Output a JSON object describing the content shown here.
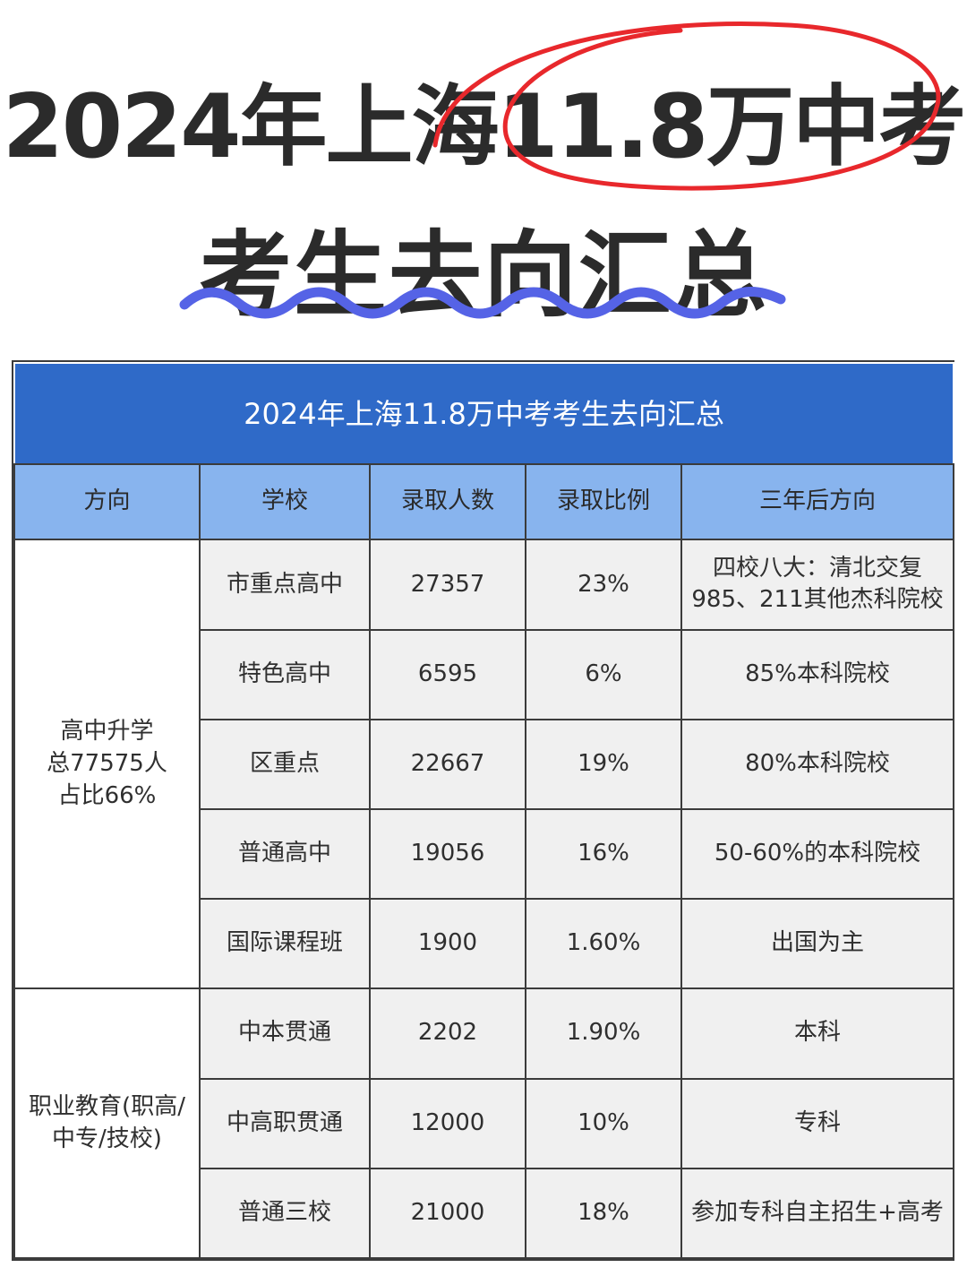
{
  "headline": {
    "line1": "2024年上海11.8万中考",
    "line2": "考生去向汇总",
    "circle_color": "#e8282c",
    "underline_color": "#5563e6"
  },
  "table": {
    "caption": "2024年上海11.8万中考考生去向汇总",
    "columns": [
      "方向",
      "学校",
      "录取人数",
      "录取比例",
      "三年后方向"
    ],
    "groups": [
      {
        "direction": "高中升学\n总77575人\n占比66%",
        "rows": [
          {
            "school": "市重点高中",
            "admitted": "27357",
            "ratio": "23%",
            "destination": "四校八大：清北交复\n985、211其他杰科院校"
          },
          {
            "school": "特色高中",
            "admitted": "6595",
            "ratio": "6%",
            "destination": "85%本科院校"
          },
          {
            "school": "区重点",
            "admitted": "22667",
            "ratio": "19%",
            "destination": "80%本科院校"
          },
          {
            "school": "普通高中",
            "admitted": "19056",
            "ratio": "16%",
            "destination": "50-60%的本科院校"
          },
          {
            "school": "国际课程班",
            "admitted": "1900",
            "ratio": "1.60%",
            "destination": "出国为主"
          }
        ]
      },
      {
        "direction": "职业教育(职高/\n中专/技校)",
        "rows": [
          {
            "school": "中本贯通",
            "admitted": "2202",
            "ratio": "1.90%",
            "destination": "本科"
          },
          {
            "school": "中高职贯通",
            "admitted": "12000",
            "ratio": "10%",
            "destination": "专科"
          },
          {
            "school": "普通三校",
            "admitted": "21000",
            "ratio": "18%",
            "destination": "参加专科自主招生+高考"
          }
        ]
      }
    ],
    "colors": {
      "caption_bg": "#2f6ac8",
      "header_bg": "#88b4ee",
      "row_bg": "#f0f0f0"
    }
  }
}
